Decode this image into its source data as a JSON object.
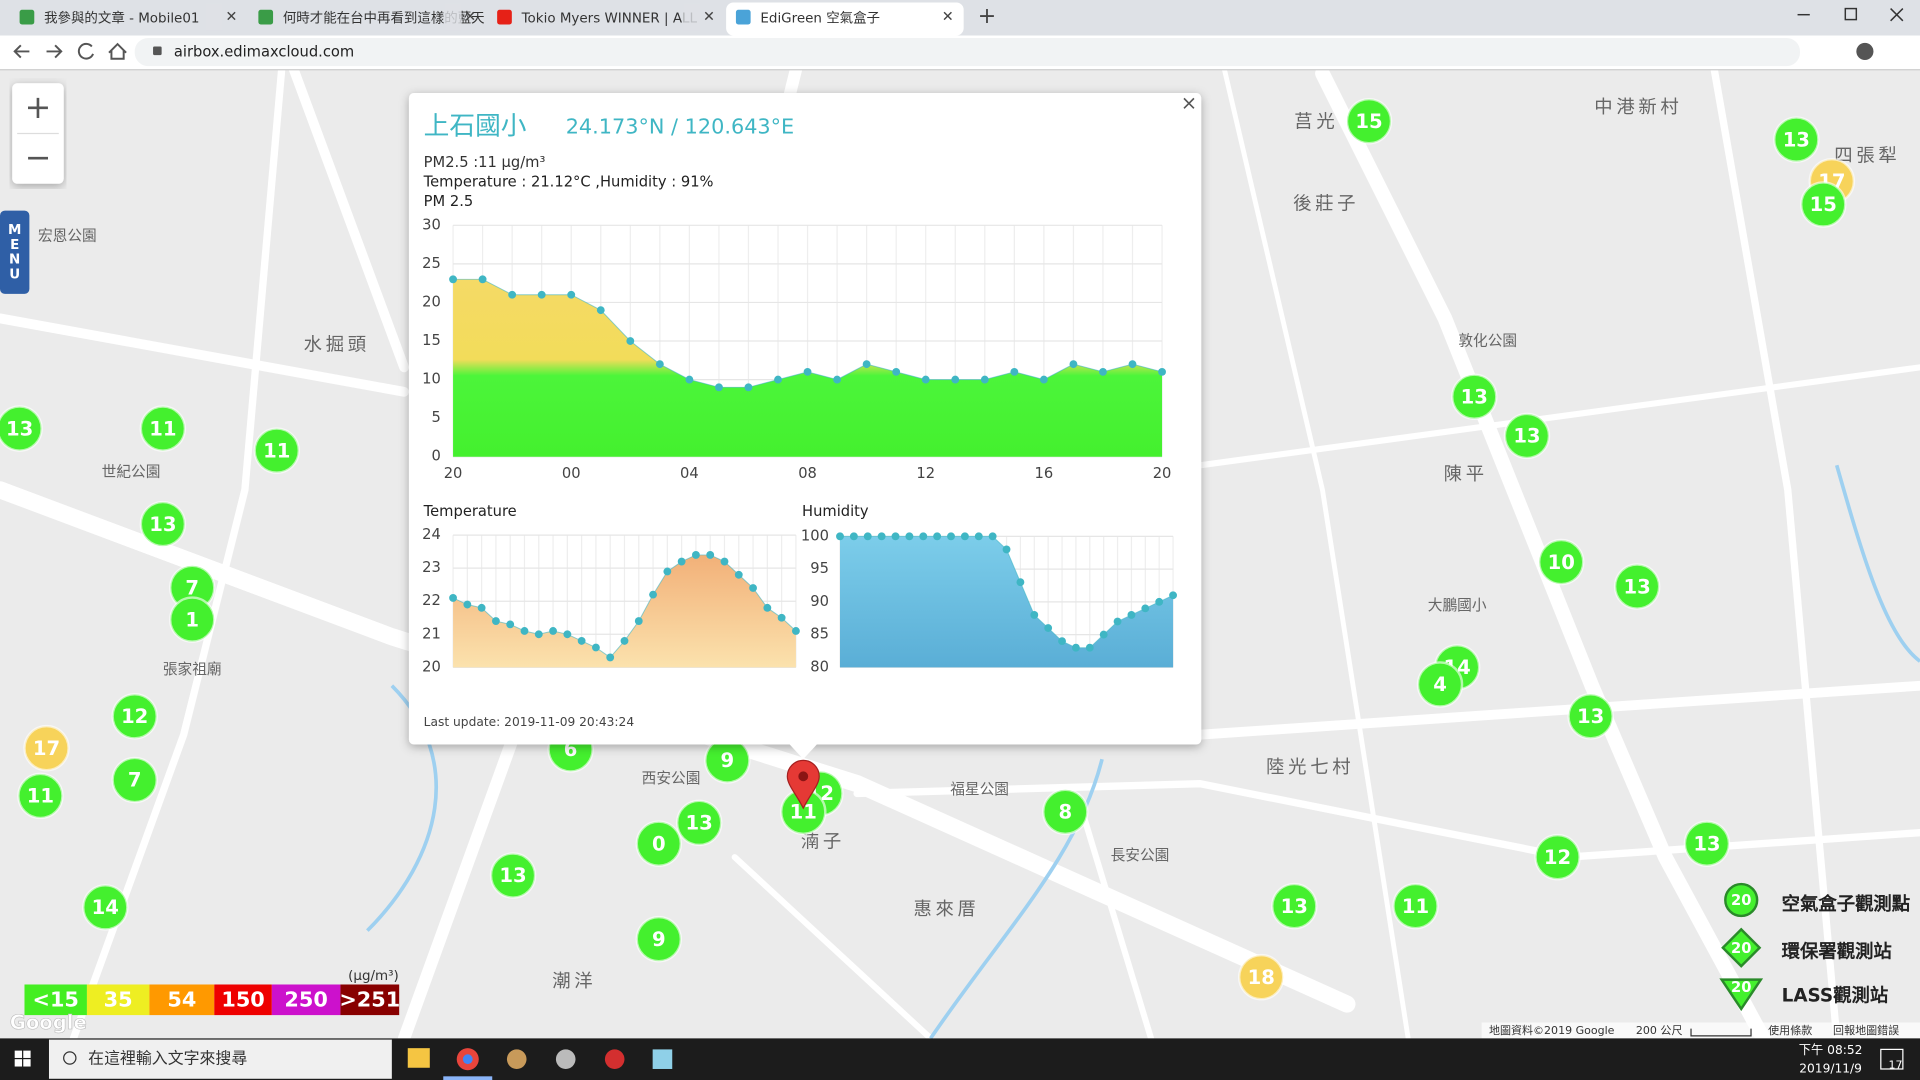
{
  "browser": {
    "tabs": [
      "我參與的文章 - Mobile01",
      "何時才能在台中再看到這樣的藍天",
      "Tokio Myers WINNER | ALL",
      "EdiGreen 空氣盒子"
    ],
    "url": "airbox.edimaxcloud.com"
  },
  "map": {
    "zoom_in": "+",
    "zoom_out": "−",
    "menu": "MENU",
    "logo": "Google",
    "attribution": "地圖資料©2019 Google",
    "scale": "200 公尺",
    "terms": "使用條款",
    "report": "回報地圖錯誤",
    "places": [
      "水掘頭",
      "後莊子",
      "陳平",
      "陸光七村",
      "惠來厝",
      "潮洋",
      "湳子",
      "中港新村",
      "四張犁",
      "莒光",
      "大鵬國小",
      "世紀公園",
      "張家祖廟",
      "宏恩公園",
      "敦化公園",
      "長安公園",
      "福星公園",
      "西安公園"
    ],
    "markers": [
      {
        "value": 15,
        "color": "#44f02e"
      },
      {
        "value": 13,
        "color": "#44f02e"
      },
      {
        "value": 17,
        "color": "#f7d35a"
      },
      {
        "value": 15,
        "color": "#44f02e"
      },
      {
        "value": 13,
        "color": "#44f02e"
      },
      {
        "value": 11,
        "color": "#44f02e"
      },
      {
        "value": 11,
        "color": "#44f02e"
      },
      {
        "value": 13,
        "color": "#44f02e"
      },
      {
        "value": 7,
        "color": "#44f02e"
      },
      {
        "value": 1,
        "color": "#44f02e"
      },
      {
        "value": 13,
        "color": "#44f02e"
      },
      {
        "value": 13,
        "color": "#44f02e"
      },
      {
        "value": 10,
        "color": "#44f02e"
      },
      {
        "value": 13,
        "color": "#44f02e"
      },
      {
        "value": 14,
        "color": "#44f02e"
      },
      {
        "value": 4,
        "color": "#44f02e"
      },
      {
        "value": 13,
        "color": "#44f02e"
      },
      {
        "value": 12,
        "color": "#44f02e"
      },
      {
        "value": 17,
        "color": "#f7d35a"
      },
      {
        "value": 7,
        "color": "#44f02e"
      },
      {
        "value": 11,
        "color": "#44f02e"
      },
      {
        "value": 6,
        "color": "#44f02e"
      },
      {
        "value": 9,
        "color": "#44f02e"
      },
      {
        "value": 13,
        "color": "#44f02e"
      },
      {
        "value": 0,
        "color": "#44f02e"
      },
      {
        "value": 12,
        "color": "#44f02e"
      },
      {
        "value": 11,
        "color": "#44f02e"
      },
      {
        "value": 8,
        "color": "#44f02e"
      },
      {
        "value": 13,
        "color": "#44f02e"
      },
      {
        "value": 13,
        "color": "#44f02e"
      },
      {
        "value": 12,
        "color": "#44f02e"
      },
      {
        "value": 13,
        "color": "#44f02e"
      },
      {
        "value": 11,
        "color": "#44f02e"
      },
      {
        "value": 14,
        "color": "#44f02e"
      },
      {
        "value": 9,
        "color": "#44f02e"
      },
      {
        "value": 18,
        "color": "#f7d35a"
      }
    ]
  },
  "popup": {
    "station": "上石國小",
    "coords": "24.173°N / 120.643°E",
    "pm25": "PM2.5 :11 μg/m³",
    "weather": "Temperature : 21.12°C ,Humidity : 91%",
    "last_update": "Last update: 2019-11-09 20:43:24",
    "close": "×"
  },
  "chart_data": [
    {
      "type": "area",
      "title": "PM 2.5",
      "categories": [
        "20",
        null,
        null,
        null,
        "00",
        null,
        null,
        null,
        "04",
        null,
        null,
        null,
        "08",
        null,
        null,
        null,
        "12",
        null,
        null,
        null,
        "16",
        null,
        null,
        null,
        "20"
      ],
      "values": [
        23,
        23,
        21,
        21,
        21,
        19,
        15,
        12,
        10,
        9,
        9,
        10,
        11,
        10,
        12,
        11,
        10,
        10,
        10,
        11,
        10,
        12,
        11,
        12,
        11
      ],
      "ylim": [
        0,
        30
      ],
      "yticks": [
        0,
        5,
        10,
        15,
        20,
        25,
        30
      ],
      "grid": true,
      "color": "#3fb6c4"
    },
    {
      "type": "area",
      "title": "Temperature",
      "values": [
        22.1,
        21.9,
        21.8,
        21.4,
        21.3,
        21.1,
        21.0,
        21.1,
        21.0,
        20.8,
        20.6,
        20.3,
        20.8,
        21.4,
        22.2,
        22.9,
        23.2,
        23.4,
        23.4,
        23.2,
        22.8,
        22.4,
        21.8,
        21.5,
        21.1
      ],
      "ylim": [
        20,
        24
      ],
      "yticks": [
        20,
        21,
        22,
        23,
        24
      ],
      "grid": true,
      "color": "#3fb6c4"
    },
    {
      "type": "area",
      "title": "Humidity",
      "values": [
        100,
        100,
        100,
        100,
        100,
        100,
        100,
        100,
        100,
        100,
        100,
        100,
        98,
        93,
        88,
        86,
        84,
        83,
        83,
        85,
        87,
        88,
        89,
        90,
        91
      ],
      "ylim": [
        80,
        100
      ],
      "yticks": [
        80,
        85,
        90,
        95,
        100
      ],
      "grid": true,
      "color": "#3fb6c4"
    }
  ],
  "aqi_legend": {
    "unit": "(μg/m³)",
    "levels": [
      {
        "label": "<15",
        "color": "#44ee22"
      },
      {
        "label": "35",
        "color": "#eeee22"
      },
      {
        "label": "54",
        "color": "#ff9900"
      },
      {
        "label": "150",
        "color": "#ee0000"
      },
      {
        "label": "250",
        "color": "#cc11cc"
      },
      {
        "label": ">251",
        "color": "#880000"
      }
    ]
  },
  "station_legend": [
    {
      "label": "空氣盒子觀測點",
      "icon_value": "20"
    },
    {
      "label": "環保署觀測站",
      "icon_value": "20"
    },
    {
      "label": "LASS觀測站",
      "icon_value": "20"
    }
  ],
  "taskbar": {
    "search": "在這裡輸入文字來搜尋",
    "time": "下午 08:52",
    "date": "2019/11/9",
    "notifications": "17"
  }
}
